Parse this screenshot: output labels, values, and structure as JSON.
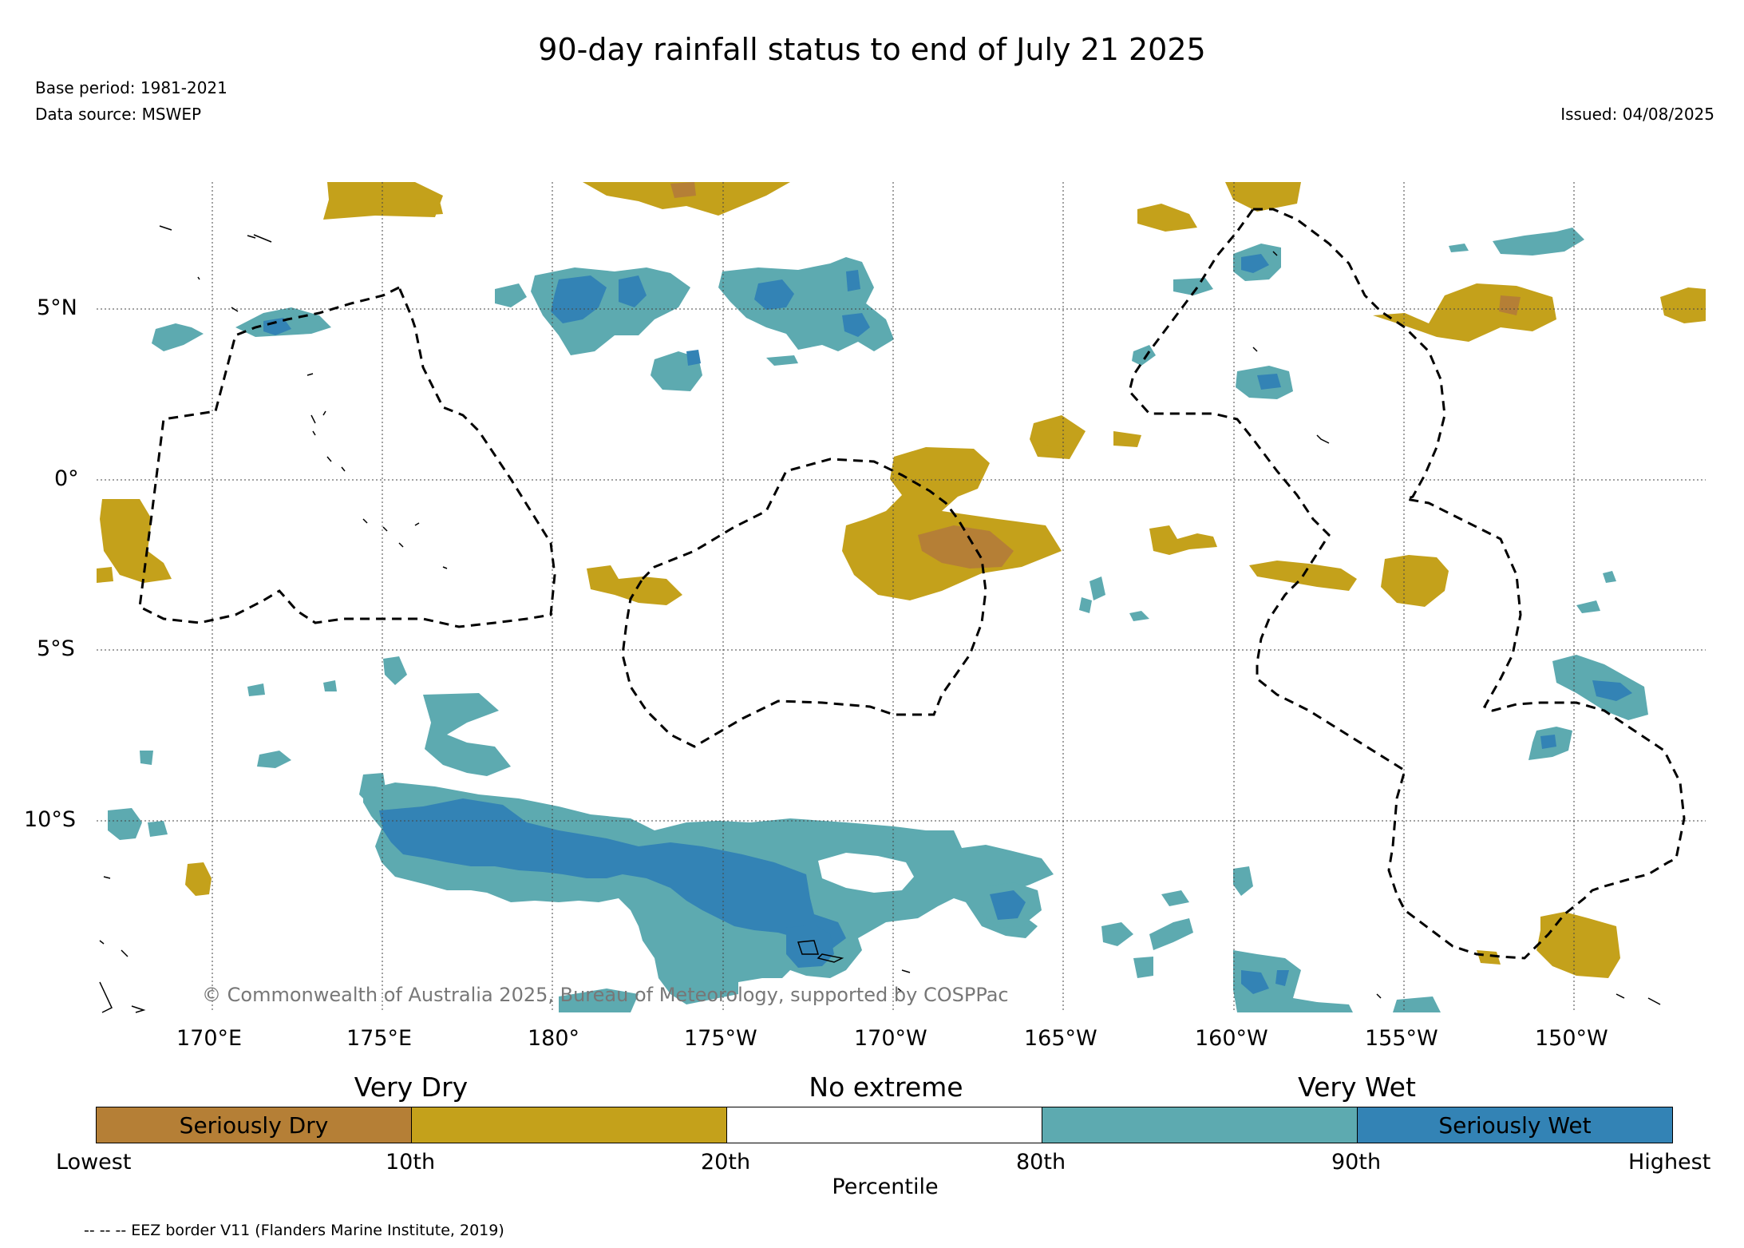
{
  "title": "90-day rainfall status to end of July 21 2025",
  "base_period": "Base period: 1981-2021",
  "data_source": "Data source: MSWEP",
  "issued": "Issued: 04/08/2025",
  "copyright": "© Commonwealth of Australia 2025, Bureau of Meteorology, supported by COSPPac",
  "lon_ticks": [
    "170°E",
    "175°E",
    "180°",
    "175°W",
    "170°W",
    "165°W",
    "160°W",
    "155°W",
    "150°W"
  ],
  "lat_ticks": [
    "5°N",
    "0°",
    "5°S",
    "10°S"
  ],
  "legend": {
    "very_dry": "Very Dry",
    "no_extreme": "No extreme",
    "very_wet": "Very Wet",
    "segments": [
      {
        "label": "Seriously Dry",
        "color": "#b57f36"
      },
      {
        "label": "",
        "color": "#c4a11b"
      },
      {
        "label": "",
        "color": "#ffffff"
      },
      {
        "label": "",
        "color": "#5daab0"
      },
      {
        "label": "Seriously Wet",
        "color": "#3383b5"
      }
    ],
    "ticks": [
      "Lowest",
      "10th",
      "20th",
      "80th",
      "90th",
      "Highest"
    ],
    "axis_label": "Percentile"
  },
  "eez_note": "-- -- -- EEZ border V11 (Flanders Marine Institute, 2019)",
  "colors": {
    "seriously_dry": "#b57f36",
    "very_dry": "#c4a11b",
    "very_wet": "#5daab0",
    "seriously_wet": "#3383b5"
  }
}
